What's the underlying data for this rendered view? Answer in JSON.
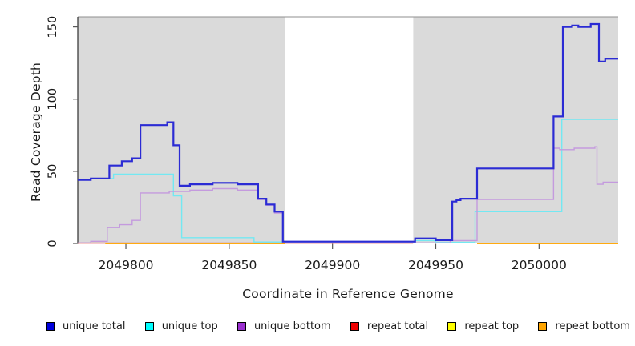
{
  "chart_data": {
    "type": "line",
    "subtype": "step-coverage-plot",
    "title": "",
    "xlabel": "Coordinate in Reference Genome",
    "ylabel": "Read Coverage Depth",
    "xlim": [
      2049776.7,
      2050038.3
    ],
    "ylim": [
      0,
      157
    ],
    "x_ticks": [
      2049800,
      2049850,
      2049900,
      2049950,
      2050000
    ],
    "y_ticks": [
      0,
      50,
      100,
      150
    ],
    "grid": false,
    "legend_position": "bottom",
    "colors": {
      "plot_background": "#ffffff",
      "shaded_region": "#dadada",
      "plot_top_border": "#8f8f8f",
      "axis_line": "#2e2e2e",
      "tick_mark": "#555555",
      "text": "#1a1a1a"
    },
    "shaded_regions": [
      {
        "x0": 2049776.7,
        "x1": 2049877.1
      },
      {
        "x0": 2049939.1,
        "x1": 2050038.3
      }
    ],
    "series": [
      {
        "name": "repeat total",
        "color": "#e03030",
        "width": 1.4,
        "runs": [
          [
            [
              2049776.7,
              0.2
            ],
            [
              2049939,
              0.2
            ]
          ]
        ]
      },
      {
        "name": "repeat top",
        "color": "#ffff00",
        "width": 1.4,
        "runs": [
          [
            [
              2049790,
              0
            ],
            [
              2049877,
              0
            ]
          ],
          [
            [
              2049970,
              0
            ],
            [
              2050038.3,
              0
            ]
          ]
        ]
      },
      {
        "name": "repeat bottom",
        "color": "#ff9e00",
        "width": 1.8,
        "runs": [
          [
            [
              2049790,
              0
            ],
            [
              2049877,
              0
            ]
          ],
          [
            [
              2049970,
              0
            ],
            [
              2050038.3,
              0
            ]
          ]
        ]
      },
      {
        "name": "unique top",
        "color": "#73e8f2",
        "width": 1.4,
        "runs": [
          [
            [
              2049776.7,
              44
            ],
            [
              2049783,
              45
            ],
            [
              2049794,
              48
            ],
            [
              2049823,
              33
            ],
            [
              2049827,
              4
            ],
            [
              2049862,
              1
            ],
            [
              2049877,
              0.8
            ],
            [
              2049940,
              2
            ],
            [
              2049950,
              0.8
            ],
            [
              2049969,
              22
            ],
            [
              2050011,
              86
            ],
            [
              2050038.3,
              86
            ]
          ]
        ]
      },
      {
        "name": "unique bottom",
        "color": "#c49ade",
        "width": 1.4,
        "runs": [
          [
            [
              2049776.7,
              0.4
            ],
            [
              2049783,
              1.5
            ],
            [
              2049791,
              11
            ],
            [
              2049797,
              13
            ],
            [
              2049803,
              16
            ],
            [
              2049807,
              35
            ],
            [
              2049821,
              36
            ],
            [
              2049831,
              37
            ],
            [
              2049842,
              38
            ],
            [
              2049854,
              37
            ],
            [
              2049864,
              30.5
            ],
            [
              2049868,
              26.5
            ],
            [
              2049872,
              21
            ],
            [
              2049876,
              0.4
            ],
            [
              2049957,
              2
            ],
            [
              2049970,
              30.5
            ],
            [
              2050007,
              66
            ],
            [
              2050010,
              65
            ],
            [
              2050017,
              66
            ],
            [
              2050027,
              67
            ],
            [
              2050028,
              41
            ],
            [
              2050031,
              42.5
            ],
            [
              2050038.3,
              42.5
            ]
          ]
        ]
      },
      {
        "name": "unique total",
        "color": "#2b2bd4",
        "width": 2.2,
        "runs": [
          [
            [
              2049776.7,
              44
            ],
            [
              2049783,
              45
            ],
            [
              2049792,
              54
            ],
            [
              2049798,
              57
            ],
            [
              2049803,
              59
            ],
            [
              2049807,
              82
            ],
            [
              2049820,
              84
            ],
            [
              2049823,
              68
            ],
            [
              2049826,
              40
            ],
            [
              2049831,
              41
            ],
            [
              2049842,
              42
            ],
            [
              2049854,
              41
            ],
            [
              2049864,
              31
            ],
            [
              2049868,
              27
            ],
            [
              2049872,
              22
            ],
            [
              2049876,
              1.3
            ],
            [
              2049940,
              3.5
            ],
            [
              2049950,
              2.3
            ],
            [
              2049958,
              29
            ],
            [
              2049960,
              30
            ],
            [
              2049962,
              31
            ],
            [
              2049970,
              52
            ],
            [
              2050007,
              88
            ],
            [
              2050011.5,
              150
            ],
            [
              2050016,
              151
            ],
            [
              2050019,
              150
            ],
            [
              2050025,
              152
            ],
            [
              2050029,
              126
            ],
            [
              2050032,
              128
            ],
            [
              2050038.3,
              128
            ]
          ]
        ]
      }
    ],
    "legend": [
      {
        "label": "unique total",
        "color": "#0000dd"
      },
      {
        "label": "unique top",
        "color": "#00ffff"
      },
      {
        "label": "unique bottom",
        "color": "#9b30d0"
      },
      {
        "label": "repeat total",
        "color": "#ee0000"
      },
      {
        "label": "repeat top",
        "color": "#ffff00"
      },
      {
        "label": "repeat bottom",
        "color": "#ffa500"
      }
    ]
  }
}
